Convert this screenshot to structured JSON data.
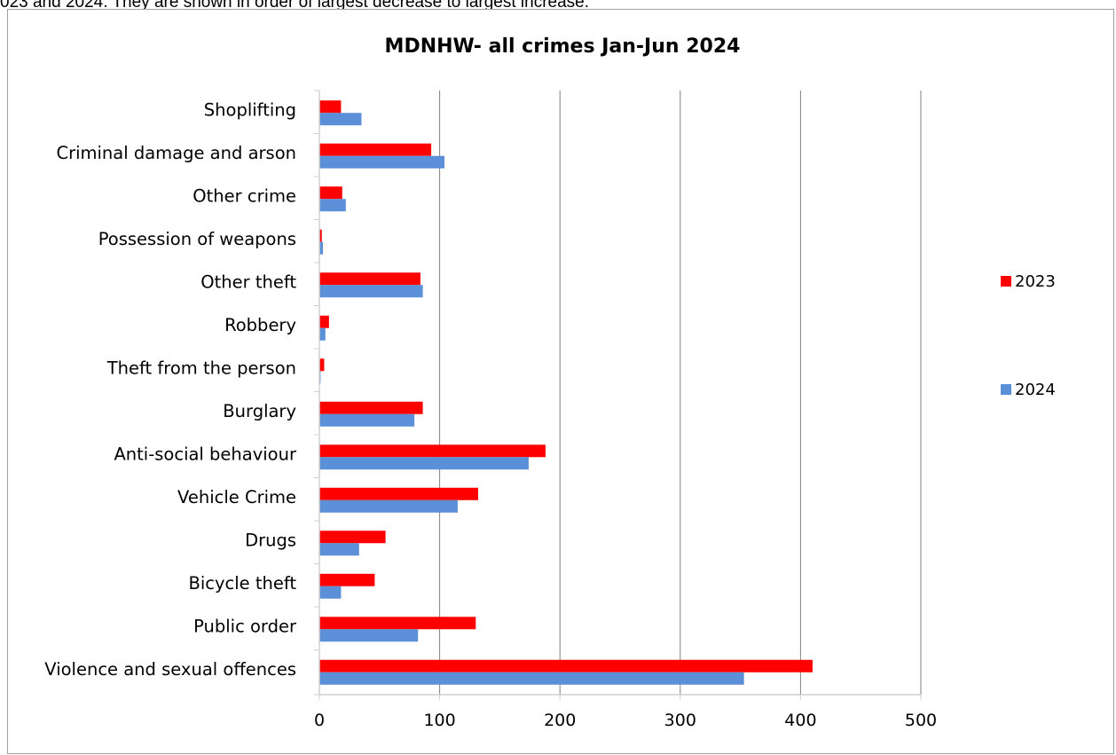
{
  "caption": "023 and 2024. They are shown in order of largest decrease to largest increase.",
  "colors": {
    "2023": "#ff0000",
    "2024": "#5b8fd8",
    "grid": "#808080",
    "axis": "#d0d0d0"
  },
  "chart_data": {
    "type": "bar",
    "orientation": "horizontal",
    "title": "MDNHW- all crimes Jan-Jun 2024",
    "xlabel": "",
    "ylabel": "",
    "xlim": [
      0,
      500
    ],
    "x_ticks": [
      0,
      100,
      200,
      300,
      400,
      500
    ],
    "grid": "vertical major gridlines",
    "legend_position": "right",
    "categories": [
      "Shoplifting",
      "Criminal damage and arson",
      "Other crime",
      "Possession of weapons",
      "Other theft",
      "Robbery",
      "Theft from the person",
      "Burglary",
      "Anti-social behaviour",
      "Vehicle Crime",
      "Drugs",
      "Bicycle theft",
      "Public order",
      "Violence and sexual offences"
    ],
    "series": [
      {
        "name": "2023",
        "values": [
          18,
          93,
          19,
          2,
          84,
          8,
          4,
          86,
          188,
          132,
          55,
          46,
          130,
          410
        ]
      },
      {
        "name": "2024",
        "values": [
          35,
          104,
          22,
          3,
          86,
          5,
          1,
          79,
          174,
          115,
          33,
          18,
          82,
          353
        ]
      }
    ]
  }
}
